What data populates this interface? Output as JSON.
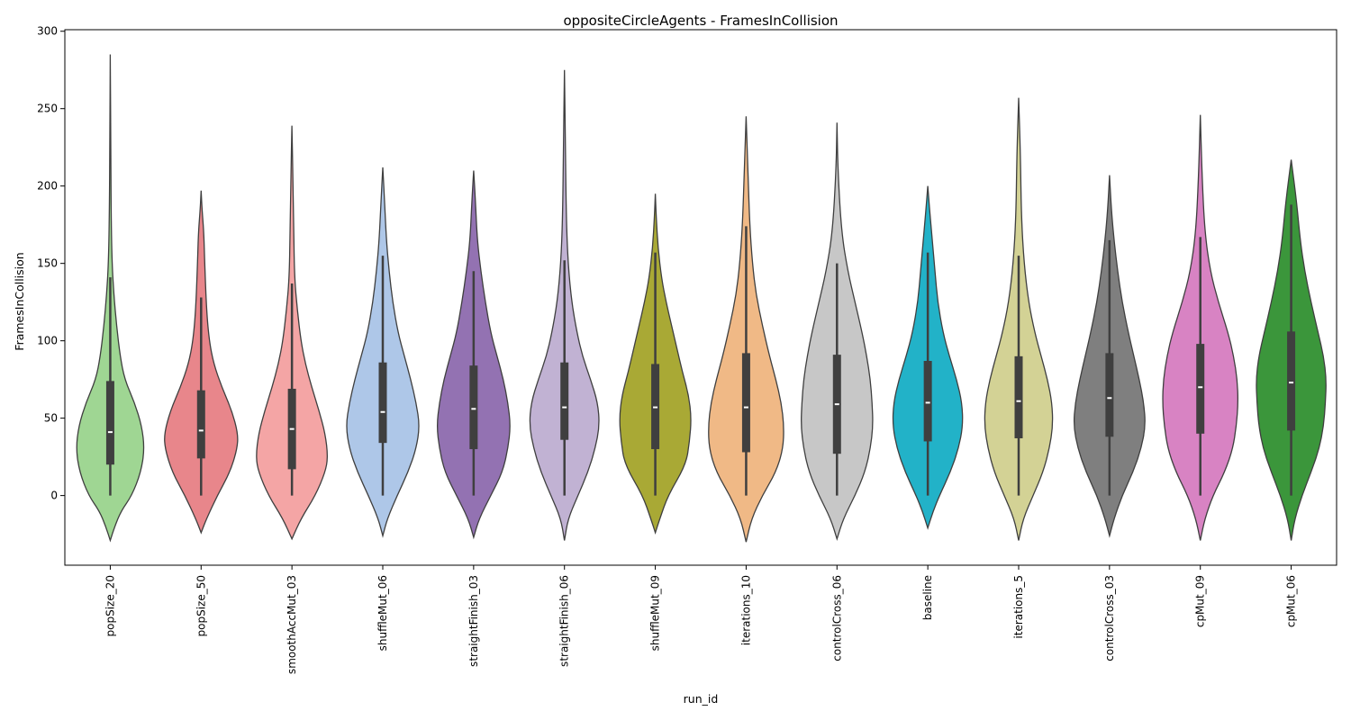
{
  "chart_data": {
    "type": "violin",
    "title": "oppositeCircleAgents - FramesInCollision",
    "xlabel": "run_id",
    "ylabel": "FramesInCollision",
    "ylim": [
      -45,
      301
    ],
    "yticks": [
      0,
      50,
      100,
      150,
      200,
      250,
      300
    ],
    "grid": false,
    "legend": "none",
    "series": [
      {
        "category": "popSize_20",
        "color": "#9fd693",
        "q1": 20,
        "median": 41,
        "q3": 74,
        "whisker_low": 0,
        "whisker_high": 141,
        "kde_min": -29,
        "kde_max": 285,
        "profile": [
          [
            -29,
            0
          ],
          [
            -20,
            5
          ],
          [
            -10,
            12
          ],
          [
            0,
            24
          ],
          [
            15,
            34
          ],
          [
            30,
            38
          ],
          [
            45,
            35
          ],
          [
            60,
            27
          ],
          [
            75,
            16
          ],
          [
            90,
            11
          ],
          [
            110,
            7
          ],
          [
            130,
            4
          ],
          [
            150,
            2
          ],
          [
            180,
            1
          ],
          [
            230,
            0.5
          ],
          [
            285,
            0
          ]
        ]
      },
      {
        "category": "popSize_50",
        "color": "#e8868b",
        "q1": 24,
        "median": 42,
        "q3": 68,
        "whisker_low": 0,
        "whisker_high": 128,
        "kde_min": -24,
        "kde_max": 197,
        "profile": [
          [
            -24,
            0
          ],
          [
            -15,
            6
          ],
          [
            0,
            18
          ],
          [
            15,
            32
          ],
          [
            30,
            40
          ],
          [
            40,
            41
          ],
          [
            55,
            34
          ],
          [
            70,
            23
          ],
          [
            85,
            14
          ],
          [
            100,
            9
          ],
          [
            120,
            6
          ],
          [
            150,
            4
          ],
          [
            170,
            3
          ],
          [
            185,
            1
          ],
          [
            197,
            0
          ]
        ]
      },
      {
        "category": "smoothAccMut_03",
        "color": "#f4a5a5",
        "q1": 17,
        "median": 43,
        "q3": 69,
        "whisker_low": 0,
        "whisker_high": 137,
        "kde_min": -28,
        "kde_max": 239,
        "profile": [
          [
            -28,
            0
          ],
          [
            -15,
            10
          ],
          [
            0,
            26
          ],
          [
            15,
            37
          ],
          [
            25,
            40
          ],
          [
            40,
            37
          ],
          [
            55,
            30
          ],
          [
            70,
            22
          ],
          [
            85,
            15
          ],
          [
            100,
            10
          ],
          [
            120,
            6
          ],
          [
            140,
            3
          ],
          [
            170,
            2
          ],
          [
            210,
            1
          ],
          [
            239,
            0
          ]
        ]
      },
      {
        "category": "shuffleMut_06",
        "color": "#aec7e8",
        "q1": 34,
        "median": 54,
        "q3": 86,
        "whisker_low": 0,
        "whisker_high": 155,
        "kde_min": -26,
        "kde_max": 212,
        "profile": [
          [
            -26,
            0
          ],
          [
            -15,
            5
          ],
          [
            0,
            16
          ],
          [
            15,
            28
          ],
          [
            30,
            37
          ],
          [
            45,
            41
          ],
          [
            60,
            37
          ],
          [
            75,
            31
          ],
          [
            90,
            24
          ],
          [
            105,
            17
          ],
          [
            125,
            11
          ],
          [
            145,
            7
          ],
          [
            165,
            4
          ],
          [
            190,
            2
          ],
          [
            212,
            0
          ]
        ]
      },
      {
        "category": "straightFinish_03",
        "color": "#9372b2",
        "q1": 30,
        "median": 56,
        "q3": 84,
        "whisker_low": 0,
        "whisker_high": 145,
        "kde_min": -27,
        "kde_max": 210,
        "profile": [
          [
            -27,
            0
          ],
          [
            -15,
            6
          ],
          [
            0,
            19
          ],
          [
            15,
            32
          ],
          [
            30,
            38
          ],
          [
            45,
            41
          ],
          [
            60,
            38
          ],
          [
            75,
            33
          ],
          [
            90,
            26
          ],
          [
            105,
            19
          ],
          [
            125,
            13
          ],
          [
            145,
            8
          ],
          [
            165,
            4
          ],
          [
            190,
            2
          ],
          [
            210,
            0
          ]
        ]
      },
      {
        "category": "straightFinish_06",
        "color": "#c1b2d3",
        "q1": 36,
        "median": 57,
        "q3": 86,
        "whisker_low": 0,
        "whisker_high": 152,
        "kde_min": -29,
        "kde_max": 275,
        "profile": [
          [
            -29,
            0
          ],
          [
            -15,
            4
          ],
          [
            0,
            15
          ],
          [
            15,
            26
          ],
          [
            30,
            34
          ],
          [
            45,
            39
          ],
          [
            60,
            37
          ],
          [
            75,
            29
          ],
          [
            90,
            20
          ],
          [
            105,
            14
          ],
          [
            125,
            8
          ],
          [
            150,
            4
          ],
          [
            180,
            2
          ],
          [
            230,
            1
          ],
          [
            275,
            0
          ]
        ]
      },
      {
        "category": "shuffleMut_09",
        "color": "#a9a935",
        "q1": 30,
        "median": 57,
        "q3": 85,
        "whisker_low": 0,
        "whisker_high": 157,
        "kde_min": -24,
        "kde_max": 195,
        "profile": [
          [
            -24,
            0
          ],
          [
            -15,
            5
          ],
          [
            0,
            14
          ],
          [
            20,
            34
          ],
          [
            35,
            38
          ],
          [
            50,
            40
          ],
          [
            65,
            37
          ],
          [
            80,
            30
          ],
          [
            95,
            24
          ],
          [
            110,
            18
          ],
          [
            125,
            12
          ],
          [
            140,
            7
          ],
          [
            160,
            3
          ],
          [
            180,
            1
          ],
          [
            195,
            0
          ]
        ]
      },
      {
        "category": "iterations_10",
        "color": "#f0b986",
        "q1": 28,
        "median": 57,
        "q3": 92,
        "whisker_low": 0,
        "whisker_high": 174,
        "kde_min": -30,
        "kde_max": 245,
        "profile": [
          [
            -30,
            0
          ],
          [
            -15,
            6
          ],
          [
            0,
            18
          ],
          [
            15,
            33
          ],
          [
            30,
            41
          ],
          [
            45,
            42
          ],
          [
            60,
            39
          ],
          [
            75,
            33
          ],
          [
            90,
            26
          ],
          [
            110,
            18
          ],
          [
            130,
            11
          ],
          [
            150,
            7
          ],
          [
            175,
            4
          ],
          [
            210,
            2
          ],
          [
            245,
            0
          ]
        ]
      },
      {
        "category": "controlCross_06",
        "color": "#c7c7c7",
        "q1": 27,
        "median": 59,
        "q3": 91,
        "whisker_low": 0,
        "whisker_high": 150,
        "kde_min": -28,
        "kde_max": 241,
        "profile": [
          [
            -28,
            0
          ],
          [
            -15,
            7
          ],
          [
            0,
            20
          ],
          [
            15,
            31
          ],
          [
            30,
            37
          ],
          [
            45,
            40
          ],
          [
            60,
            39
          ],
          [
            75,
            37
          ],
          [
            90,
            33
          ],
          [
            105,
            28
          ],
          [
            125,
            20
          ],
          [
            145,
            12
          ],
          [
            170,
            5
          ],
          [
            210,
            1
          ],
          [
            241,
            0
          ]
        ]
      },
      {
        "category": "baseline",
        "color": "#22b2c8",
        "q1": 35,
        "median": 60,
        "q3": 87,
        "whisker_low": 0,
        "whisker_high": 157,
        "kde_min": -21,
        "kde_max": 200,
        "profile": [
          [
            -21,
            0
          ],
          [
            -10,
            6
          ],
          [
            0,
            13
          ],
          [
            15,
            25
          ],
          [
            30,
            34
          ],
          [
            45,
            39
          ],
          [
            60,
            38
          ],
          [
            75,
            32
          ],
          [
            90,
            24
          ],
          [
            105,
            17
          ],
          [
            125,
            11
          ],
          [
            145,
            8
          ],
          [
            165,
            5
          ],
          [
            185,
            2
          ],
          [
            200,
            0
          ]
        ]
      },
      {
        "category": "iterations_5",
        "color": "#d3d295",
        "q1": 37,
        "median": 61,
        "q3": 90,
        "whisker_low": 0,
        "whisker_high": 155,
        "kde_min": -29,
        "kde_max": 257,
        "profile": [
          [
            -29,
            0
          ],
          [
            -15,
            5
          ],
          [
            0,
            16
          ],
          [
            15,
            27
          ],
          [
            30,
            34
          ],
          [
            45,
            38
          ],
          [
            60,
            37
          ],
          [
            75,
            32
          ],
          [
            90,
            25
          ],
          [
            105,
            18
          ],
          [
            125,
            11
          ],
          [
            150,
            6
          ],
          [
            180,
            3
          ],
          [
            220,
            2
          ],
          [
            257,
            0
          ]
        ]
      },
      {
        "category": "controlCross_03",
        "color": "#7f7f7f",
        "q1": 38,
        "median": 63,
        "q3": 92,
        "whisker_low": 0,
        "whisker_high": 165,
        "kde_min": -26,
        "kde_max": 207,
        "profile": [
          [
            -26,
            0
          ],
          [
            -15,
            5
          ],
          [
            0,
            14
          ],
          [
            15,
            26
          ],
          [
            30,
            35
          ],
          [
            45,
            40
          ],
          [
            60,
            38
          ],
          [
            75,
            33
          ],
          [
            90,
            27
          ],
          [
            105,
            21
          ],
          [
            125,
            14
          ],
          [
            145,
            9
          ],
          [
            165,
            5
          ],
          [
            185,
            2
          ],
          [
            207,
            0
          ]
        ]
      },
      {
        "category": "cpMut_09",
        "color": "#d883c3",
        "q1": 40,
        "median": 70,
        "q3": 98,
        "whisker_low": 0,
        "whisker_high": 167,
        "kde_min": -29,
        "kde_max": 246,
        "profile": [
          [
            -29,
            0
          ],
          [
            -15,
            5
          ],
          [
            0,
            14
          ],
          [
            15,
            27
          ],
          [
            30,
            36
          ],
          [
            45,
            40
          ],
          [
            60,
            42
          ],
          [
            75,
            41
          ],
          [
            90,
            37
          ],
          [
            105,
            31
          ],
          [
            125,
            20
          ],
          [
            145,
            11
          ],
          [
            170,
            5
          ],
          [
            205,
            2
          ],
          [
            246,
            0
          ]
        ]
      },
      {
        "category": "cpMut_06",
        "color": "#3b963b",
        "q1": 42,
        "median": 73,
        "q3": 106,
        "whisker_low": 0,
        "whisker_high": 188,
        "kde_min": -29,
        "kde_max": 217,
        "profile": [
          [
            -29,
            0
          ],
          [
            -15,
            4
          ],
          [
            0,
            12
          ],
          [
            15,
            22
          ],
          [
            30,
            31
          ],
          [
            45,
            36
          ],
          [
            60,
            38
          ],
          [
            75,
            39
          ],
          [
            90,
            36
          ],
          [
            105,
            30
          ],
          [
            125,
            22
          ],
          [
            145,
            15
          ],
          [
            165,
            10
          ],
          [
            190,
            6
          ],
          [
            217,
            0
          ]
        ]
      }
    ]
  }
}
